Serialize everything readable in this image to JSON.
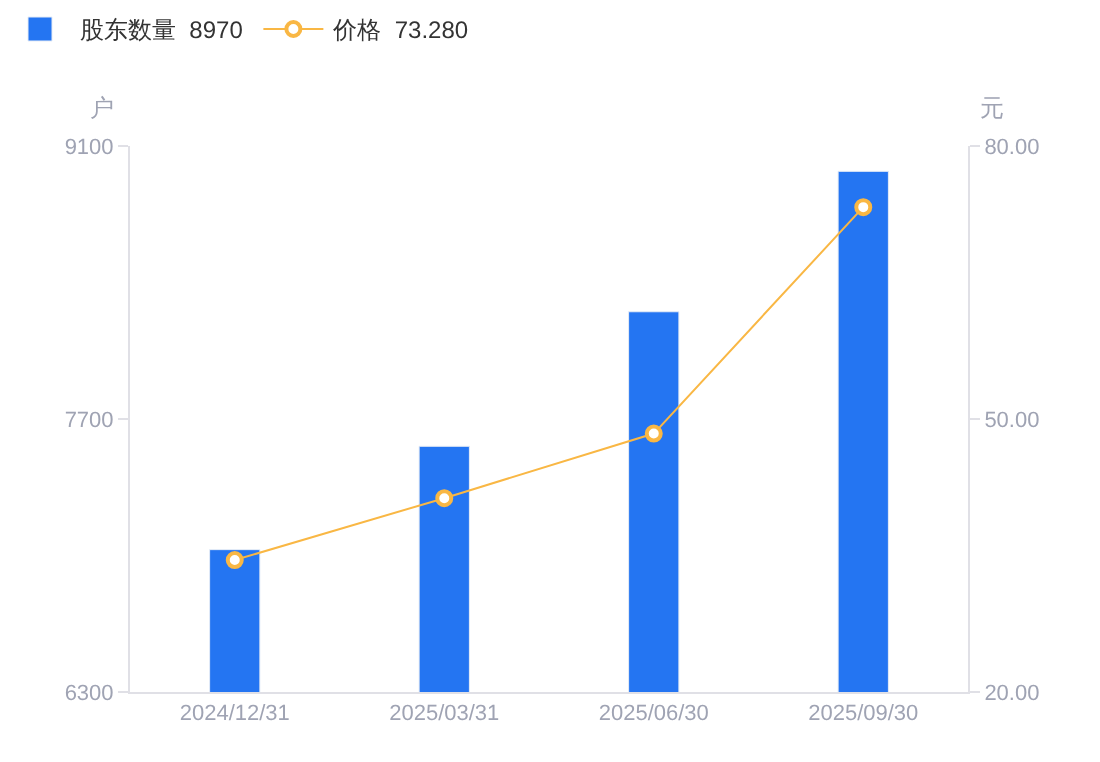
{
  "chart_data": {
    "type": "bar",
    "categories": [
      "2024/12/31",
      "2025/03/31",
      "2025/06/30",
      "2025/09/30"
    ],
    "series": [
      {
        "name": "股东数量  8970",
        "color": "#2475f2",
        "values": [
          7030,
          7560,
          8250,
          8970
        ]
      },
      {
        "name": "价格  73.280",
        "type": "line",
        "axis": "y2",
        "color": "#f9b744",
        "marker": "circle",
        "values": [
          34.5,
          41.3,
          48.4,
          73.28
        ]
      }
    ],
    "ylabel": "户",
    "y2label": "元",
    "ylim": [
      6300,
      9100
    ],
    "yticks": [
      6300,
      7700,
      9100
    ],
    "y2lim": [
      20,
      80
    ],
    "y2ticks": [
      {
        "value": 20,
        "label": "20.00"
      },
      {
        "value": 50,
        "label": "50.00"
      },
      {
        "value": 80,
        "label": "80.00"
      }
    ],
    "legend": "top left"
  }
}
